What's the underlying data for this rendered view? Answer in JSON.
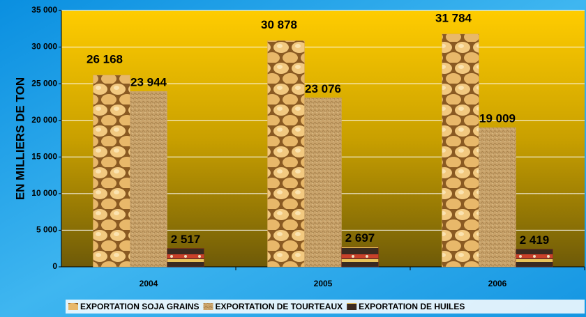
{
  "chart_data": {
    "type": "bar",
    "y_label": "EN MILLIERS DE TON",
    "categories": [
      "2004",
      "2005",
      "2006"
    ],
    "series": [
      {
        "name": "EXPORTATION SOJA GRAINS",
        "color": "#d9a85a",
        "values": [
          26168,
          30878,
          31784
        ],
        "value_labels": [
          "26 168",
          "30 878",
          "31 784"
        ]
      },
      {
        "name": "EXPORTATION DE TOURTEAUX",
        "color": "#c9a36b",
        "values": [
          23944,
          23076,
          19009
        ],
        "value_labels": [
          "23 944",
          "23 076",
          "19 009"
        ]
      },
      {
        "name": "EXPORTATION DE HUILES",
        "color": "#8b2a1a",
        "values": [
          2517,
          2697,
          2419
        ],
        "value_labels": [
          "2 517",
          "2 697",
          "2 419"
        ]
      }
    ],
    "ylim": [
      0,
      35000
    ],
    "yticks": [
      0,
      {
        "value": 5000,
        "label": "5 000"
      },
      {
        "value": 10000,
        "label": "10 000"
      },
      {
        "value": 15000,
        "label": "15 000"
      },
      {
        "value": 20000,
        "label": "20 000"
      },
      {
        "value": 25000,
        "label": "25 000"
      },
      {
        "value": 30000,
        "label": "30 000"
      },
      {
        "value": 35000,
        "label": "35 000"
      }
    ],
    "grid": true
  }
}
